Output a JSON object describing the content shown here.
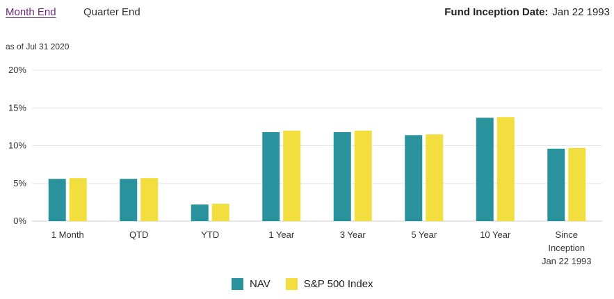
{
  "tabs": {
    "active": "Month End",
    "inactive": "Quarter End"
  },
  "inception": {
    "label": "Fund Inception Date:",
    "value": "Jan 22 1993"
  },
  "as_of": "as of Jul 31 2020",
  "colors": {
    "nav": "#2a929d",
    "index": "#f2de3e",
    "grid": "#e6e6e6",
    "axis": "#cccccc"
  },
  "chart_data": {
    "type": "bar",
    "categories": [
      [
        "1 Month"
      ],
      [
        "QTD"
      ],
      [
        "YTD"
      ],
      [
        "1 Year"
      ],
      [
        "3 Year"
      ],
      [
        "5 Year"
      ],
      [
        "10 Year"
      ],
      [
        "Since",
        "Inception",
        "Jan 22 1993"
      ]
    ],
    "series": [
      {
        "name": "NAV",
        "values": [
          5.6,
          5.6,
          2.2,
          11.8,
          11.8,
          11.4,
          13.7,
          9.6
        ]
      },
      {
        "name": "S&P 500 Index",
        "values": [
          5.7,
          5.7,
          2.3,
          12.0,
          12.0,
          11.5,
          13.8,
          9.7
        ]
      }
    ],
    "ylim": [
      0,
      20
    ],
    "yticks": [
      0,
      5,
      10,
      15,
      20
    ],
    "ytick_suffix": "%",
    "grid": true,
    "legend_position": "bottom-center"
  }
}
